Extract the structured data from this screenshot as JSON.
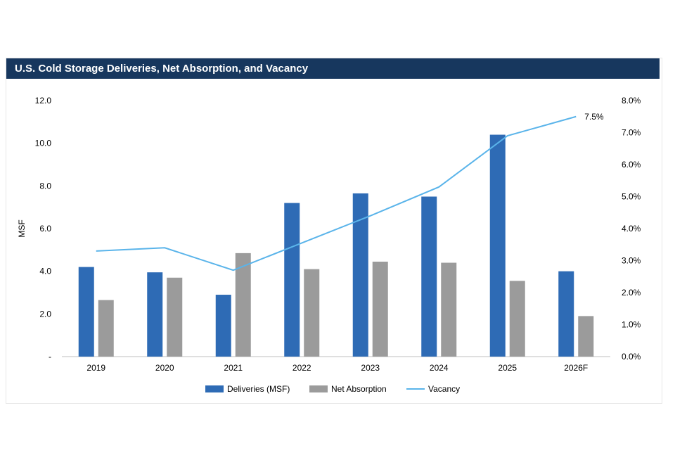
{
  "chart_data": {
    "type": "bar",
    "title": "U.S. Cold Storage Deliveries, Net Absorption, and Vacancy",
    "categories": [
      "2019",
      "2020",
      "2021",
      "2022",
      "2023",
      "2024",
      "2025",
      "2026F"
    ],
    "series": [
      {
        "name": "Deliveries (MSF)",
        "type": "bar",
        "axis": "left",
        "color": "#2e6bb5",
        "values": [
          4.2,
          3.95,
          2.9,
          7.2,
          7.65,
          7.5,
          10.4,
          4.0
        ]
      },
      {
        "name": "Net Absorption",
        "type": "bar",
        "axis": "left",
        "color": "#9b9b9b",
        "values": [
          2.65,
          3.7,
          4.85,
          4.1,
          4.45,
          4.4,
          3.55,
          1.9
        ]
      },
      {
        "name": "Vacancy",
        "type": "line",
        "axis": "right",
        "color": "#5ab4ea",
        "values": [
          3.3,
          3.4,
          2.7,
          3.55,
          4.4,
          5.3,
          6.9,
          7.5
        ]
      }
    ],
    "ylabel": "MSF",
    "ylim": [
      0,
      12
    ],
    "yticks": [
      "-",
      "2.0",
      "4.0",
      "6.0",
      "8.0",
      "10.0",
      "12.0"
    ],
    "y2lim": [
      0,
      8
    ],
    "y2ticks": [
      "0.0%",
      "1.0%",
      "2.0%",
      "3.0%",
      "4.0%",
      "5.0%",
      "6.0%",
      "7.0%",
      "8.0%"
    ],
    "annotation": "7.5%",
    "grid": false,
    "legend": "bottom"
  }
}
